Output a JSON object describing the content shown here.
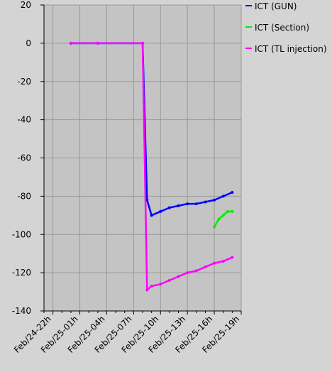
{
  "chart_data": {
    "type": "line",
    "ylim": [
      -140,
      20
    ],
    "yticks": [
      20,
      0,
      -20,
      -40,
      -60,
      -80,
      -100,
      -120,
      -140
    ],
    "xticks": [
      "Feb/24-22h",
      "Feb/25-01h",
      "Feb/25-04h",
      "Feb/25-07h",
      "Feb/25-10h",
      "Feb/25-13h",
      "Feb/25-16h",
      "Feb/25-19h"
    ],
    "x_range_hours": [
      -1,
      21
    ],
    "grid": true,
    "legend_position": "right",
    "series": [
      {
        "name": "ICT (GUN)",
        "color": "#0000ff",
        "x": [
          2.0,
          5.0,
          10.0,
          10.5,
          11.0,
          12.0,
          13.0,
          14.0,
          15.0,
          16.0,
          17.0,
          18.0,
          19.0,
          20.0
        ],
        "y": [
          0,
          0,
          0,
          -82,
          -90,
          -88,
          -86,
          -85,
          -84,
          -84,
          -83,
          -82,
          -80,
          -78
        ]
      },
      {
        "name": "ICT (Section)",
        "color": "#00ee00",
        "x": [
          18.0,
          18.5,
          19.0,
          19.5,
          20.0
        ],
        "y": [
          -96,
          -92,
          -90,
          -88,
          -88
        ]
      },
      {
        "name": "ICT (TL injection)",
        "color": "#ff00ff",
        "x": [
          2.0,
          5.0,
          10.0,
          10.5,
          11.0,
          12.0,
          13.0,
          14.0,
          15.0,
          16.0,
          17.0,
          18.0,
          19.0,
          20.0
        ],
        "y": [
          0,
          0,
          0,
          -129,
          -127,
          -126,
          -124,
          -122,
          -120,
          -119,
          -117,
          -115,
          -114,
          -112
        ]
      }
    ]
  }
}
